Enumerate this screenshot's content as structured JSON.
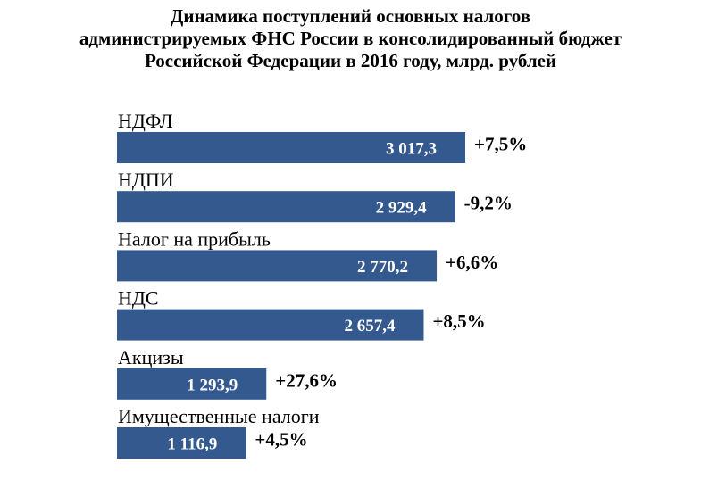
{
  "title_lines": [
    "Динамика поступлений основных налогов",
    "администрируемых ФНС России в консолидированный бюджет",
    "Российской Федерации в 2016 году, млрд. рублей"
  ],
  "bar_color": "#34598F",
  "chart_data": {
    "type": "bar",
    "orientation": "horizontal",
    "title": "Динамика поступлений основных налогов администрируемых ФНС России в консолидированный бюджет Российской Федерации в 2016 году, млрд. рублей",
    "categories": [
      "НДФЛ",
      "НДПИ",
      "Налог на прибыль",
      "НДС",
      "Акцизы",
      "Имущественные налоги"
    ],
    "values": [
      3017.3,
      2929.4,
      2770.2,
      2657.4,
      1293.9,
      1116.9
    ],
    "value_labels": [
      "3 017,3",
      "2 929,4",
      "2 770,2",
      "2 657,4",
      "1 293,9",
      "1 116,9"
    ],
    "change_labels": [
      "+7,5%",
      "-9,2%",
      "+6,6%",
      "+8,5%",
      "+27,6%",
      "+4,5%"
    ],
    "xlim": [
      0,
      3017.3
    ],
    "grid": false,
    "legend": "none"
  }
}
